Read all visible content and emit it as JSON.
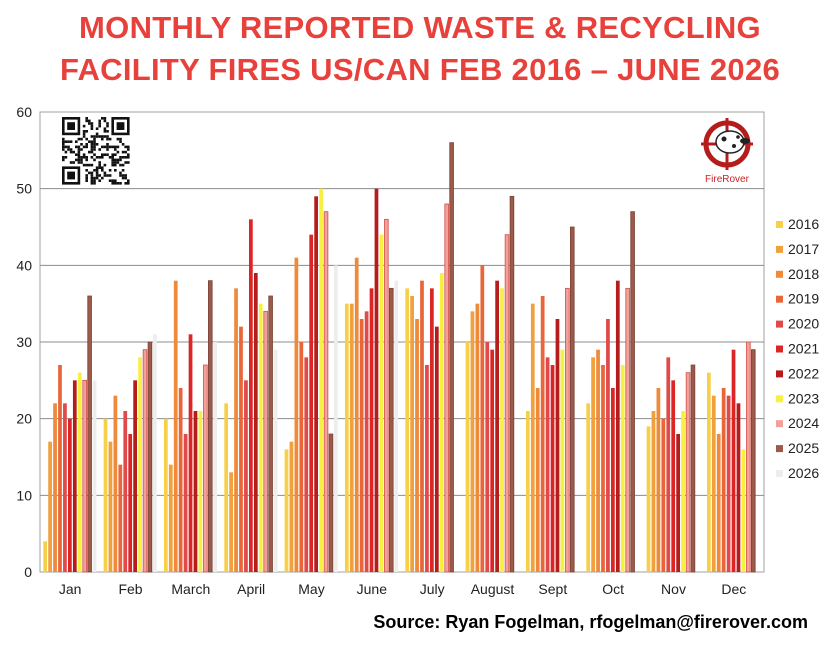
{
  "title_line1": "MONTHLY REPORTED WASTE & RECYCLING",
  "title_line2": "FACILITY FIRES US/CAN FEB 2016 – JUNE 2026",
  "source": "Source: Ryan Fogelman, rfogelman@firerover.com",
  "logo": {
    "name": "FireRover",
    "icon": "dalmatian-crosshair-icon"
  },
  "qr_icon": "qr-code-icon",
  "chart_data": {
    "type": "bar",
    "title": "MONTHLY REPORTED WASTE & RECYCLING FACILITY FIRES US/CAN FEB 2016 – JUNE 2026",
    "categories": [
      "Jan",
      "Feb",
      "March",
      "April",
      "May",
      "June",
      "July",
      "August",
      "Sept",
      "Oct",
      "Nov",
      "Dec"
    ],
    "ylim": [
      0,
      60
    ],
    "yticks": [
      0,
      10,
      20,
      30,
      40,
      50,
      60
    ],
    "grid": true,
    "legend_position": "right",
    "series": [
      {
        "name": "2016",
        "color": "#f7d04a",
        "values": [
          4,
          20,
          20,
          22,
          16,
          35,
          37,
          30,
          21,
          22,
          19,
          26
        ]
      },
      {
        "name": "2017",
        "color": "#f0a03c",
        "values": [
          17,
          17,
          14,
          13,
          17,
          35,
          36,
          34,
          35,
          28,
          21,
          23
        ]
      },
      {
        "name": "2018",
        "color": "#ee8a3a",
        "values": [
          22,
          23,
          38,
          37,
          41,
          41,
          33,
          35,
          24,
          29,
          24,
          18
        ]
      },
      {
        "name": "2019",
        "color": "#e8663a",
        "values": [
          27,
          14,
          24,
          32,
          30,
          33,
          38,
          40,
          36,
          27,
          20,
          24
        ]
      },
      {
        "name": "2020",
        "color": "#e04a4a",
        "values": [
          22,
          21,
          18,
          25,
          28,
          34,
          27,
          30,
          28,
          33,
          28,
          23
        ]
      },
      {
        "name": "2021",
        "color": "#dc2626",
        "values": [
          20,
          18,
          31,
          46,
          44,
          37,
          37,
          29,
          27,
          24,
          25,
          29
        ]
      },
      {
        "name": "2022",
        "color": "#b51c1c",
        "values": [
          25,
          25,
          21,
          39,
          49,
          50,
          32,
          38,
          33,
          38,
          18,
          22
        ]
      },
      {
        "name": "2023",
        "color": "#f8f040",
        "values": [
          26,
          28,
          21,
          35,
          50,
          44,
          39,
          37,
          29,
          27,
          21,
          16
        ]
      },
      {
        "name": "2024",
        "color": "#f2a09a",
        "values": [
          25,
          29,
          27,
          34,
          47,
          46,
          48,
          44,
          37,
          37,
          26,
          30
        ]
      },
      {
        "name": "2025",
        "color": "#9c5a4a",
        "values": [
          36,
          30,
          38,
          36,
          18,
          37,
          56,
          49,
          45,
          47,
          27,
          29
        ]
      },
      {
        "name": "2026",
        "color": "#ededed",
        "values": [
          25,
          31,
          30,
          29,
          40,
          38,
          null,
          null,
          null,
          null,
          null,
          null
        ]
      }
    ]
  }
}
